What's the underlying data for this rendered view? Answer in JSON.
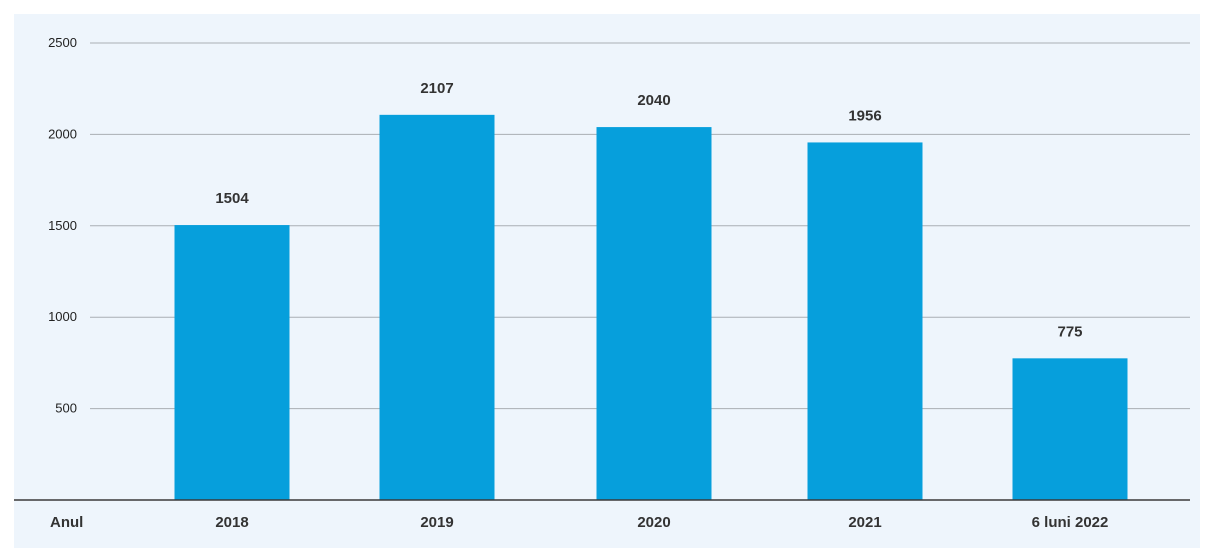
{
  "chart_data": {
    "type": "bar",
    "xlabel": "Anul",
    "ylabel": "",
    "title": "",
    "categories": [
      "2018",
      "2019",
      "2020",
      "2021",
      "6 luni 2022"
    ],
    "values": [
      1504,
      2107,
      2040,
      1956,
      775
    ],
    "value_labels": [
      "1504",
      "2107",
      "2040",
      "1956",
      "775"
    ],
    "ylim": [
      0,
      2500
    ],
    "yticks": [
      500,
      1000,
      1500,
      2000,
      2500
    ],
    "ytick_labels": [
      "500",
      "1000",
      "1500",
      "2000",
      "2500"
    ],
    "grid": true,
    "legend": "none",
    "colors": {
      "bar": "#069fdc",
      "grid": "#a9aeb3",
      "axis": "#3a3a3a",
      "background": "#eef5fc"
    }
  }
}
